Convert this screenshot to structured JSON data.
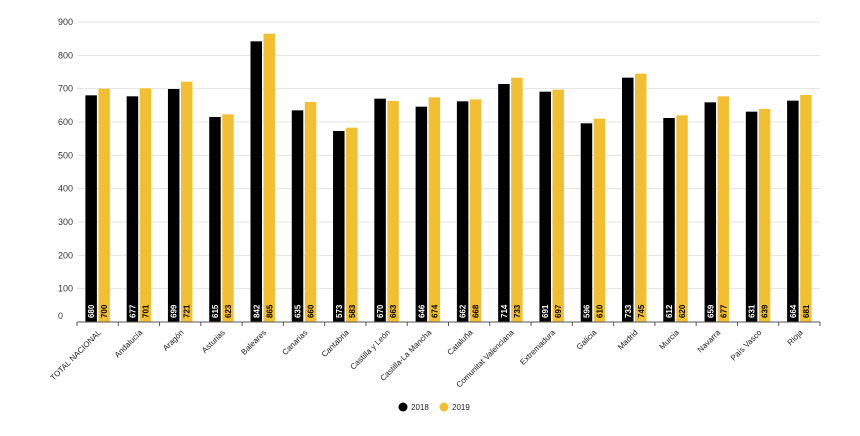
{
  "chart_data": {
    "type": "bar",
    "title": "",
    "xlabel": "",
    "ylabel": "",
    "ylim": [
      0,
      900
    ],
    "yticks": [
      0,
      100,
      200,
      300,
      400,
      500,
      600,
      700,
      800,
      900
    ],
    "grid": true,
    "legend_position": "bottom-center",
    "categories": [
      "TOTAL NACIONAL",
      "Andalucía",
      "Aragón",
      "Asturias",
      "Baleares",
      "Canarias",
      "Cantabria",
      "Castilla y León",
      "Castilla-La Mancha",
      "Cataluña",
      "Comunitat Valenciana",
      "Extremadura",
      "Galicia",
      "Madrid",
      "Murcia",
      "Navarra",
      "País Vasco",
      "Rioja"
    ],
    "series": [
      {
        "name": "2018",
        "color": "#000000",
        "label_color": "#ffffff",
        "values": [
          680,
          677,
          699,
          615,
          842,
          635,
          573,
          670,
          646,
          662,
          714,
          691,
          596,
          733,
          612,
          659,
          631,
          664
        ]
      },
      {
        "name": "2019",
        "color": "#f2bf33",
        "label_color": "#000000",
        "values": [
          700,
          701,
          721,
          623,
          865,
          660,
          583,
          663,
          674,
          668,
          733,
          697,
          610,
          745,
          620,
          677,
          639,
          681
        ]
      }
    ]
  }
}
